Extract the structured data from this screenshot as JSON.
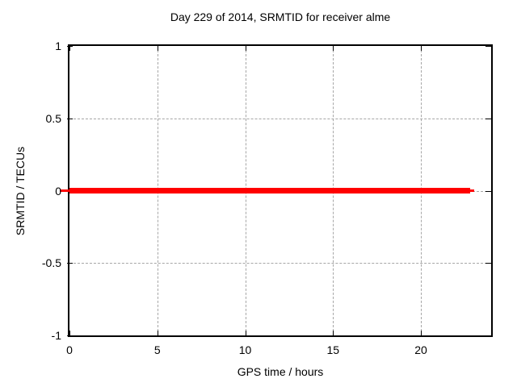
{
  "chart_data": {
    "type": "line",
    "title": "Day 229 of 2014, SRMTID for receiver alme",
    "xlabel": "GPS time / hours",
    "ylabel": "SRMTID / TECUs",
    "xlim": [
      0,
      24
    ],
    "ylim": [
      -1,
      1
    ],
    "x_ticks": [
      {
        "value": 0,
        "label": "0"
      },
      {
        "value": 5,
        "label": "5"
      },
      {
        "value": 10,
        "label": "10"
      },
      {
        "value": 15,
        "label": "15"
      },
      {
        "value": 20,
        "label": "20"
      }
    ],
    "y_ticks": [
      {
        "value": 1,
        "label": "1"
      },
      {
        "value": 0.5,
        "label": "0.5"
      },
      {
        "value": 0,
        "label": "0"
      },
      {
        "value": -0.5,
        "label": "-0.5"
      },
      {
        "value": -1,
        "label": "-1"
      }
    ],
    "grid": true,
    "legend": "none",
    "series": [
      {
        "name": "SRMTID",
        "color": "#ff0000",
        "y_value": 0,
        "x_start": 0,
        "x_end": 22.8
      }
    ],
    "colors": {
      "series": "#ff0000",
      "grid": "#a6a6a6",
      "axis": "#000000",
      "background": "#ffffff",
      "text": "#000000"
    }
  }
}
